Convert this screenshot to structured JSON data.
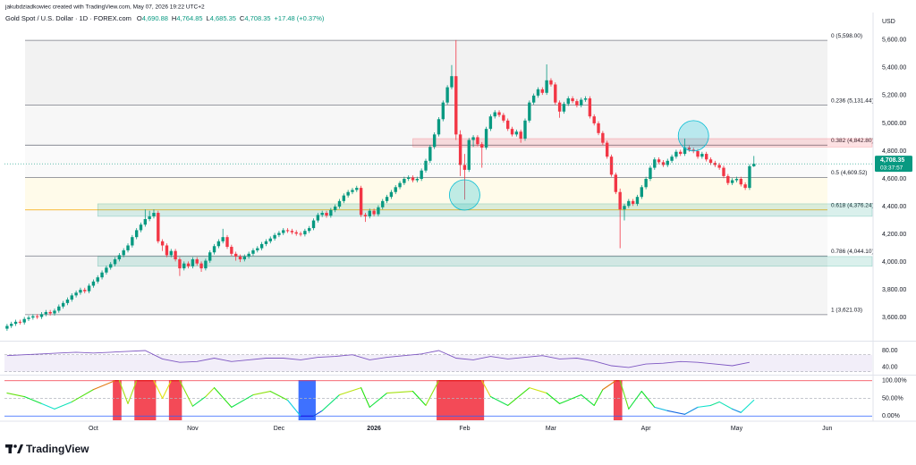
{
  "header": {
    "credit": "jakubdziadkowiec created with TradingView.com, May 07, 2026 19:22 UTC+2",
    "symbol": "Gold Spot / U.S. Dollar · 1D · FOREX.com",
    "ohlc": [
      {
        "key": "O",
        "text": "4,690.88"
      },
      {
        "key": "H",
        "text": "4,764.85"
      },
      {
        "key": "L",
        "text": "4,685.35"
      },
      {
        "key": "C",
        "text": "4,708.35"
      }
    ],
    "change": "+17.48 (+0.37%)"
  },
  "currency": "USD",
  "logo": "TradingView",
  "chart_data": [
    {
      "type": "candlestick",
      "xlim": [
        -0.6,
        200.4
      ],
      "xticks": [
        {
          "value": 20,
          "label": "Oct"
        },
        {
          "value": 43,
          "label": "Nov"
        },
        {
          "value": 63,
          "label": "Dec"
        },
        {
          "value": 85,
          "label": "2026"
        },
        {
          "value": 106,
          "label": "Feb"
        },
        {
          "value": 126,
          "label": "Mar"
        },
        {
          "value": 148,
          "label": "Apr"
        },
        {
          "value": 169,
          "label": "May"
        },
        {
          "value": 190,
          "label": "Jun"
        }
      ],
      "ylim": [
        3440,
        5760
      ],
      "yticks": [
        {
          "value": 3600,
          "label": "3,600.00"
        },
        {
          "value": 3800,
          "label": "3,800.00"
        },
        {
          "value": 4000,
          "label": "4,000.00"
        },
        {
          "value": 4200,
          "label": "4,200.00"
        },
        {
          "value": 4400,
          "label": "4,400.00"
        },
        {
          "value": 4600,
          "label": "4,600.00"
        },
        {
          "value": 4800,
          "label": "4,800.00"
        },
        {
          "value": 5000,
          "label": "5,000.00"
        },
        {
          "value": 5200,
          "label": "5,200.00"
        },
        {
          "value": 5400,
          "label": "5,400.00"
        },
        {
          "value": 5600,
          "label": "5,600.00"
        }
      ],
      "colors": {
        "up": "#089981",
        "down": "#f23645"
      },
      "open": [
        3520,
        3540,
        3555,
        3570,
        3565,
        3590,
        3600,
        3610,
        3605,
        3625,
        3640,
        3630,
        3650,
        3680,
        3705,
        3730,
        3760,
        3780,
        3800,
        3790,
        3830,
        3860,
        3890,
        3925,
        3960,
        3985,
        4020,
        4050,
        4085,
        4120,
        4180,
        4230,
        4270,
        4310,
        4330,
        4355,
        4150,
        4120,
        4050,
        4080,
        4020,
        3955,
        3990,
        3970,
        4020,
        3990,
        3955,
        4010,
        4070,
        4115,
        4150,
        4180,
        4110,
        4060,
        4040,
        4020,
        4040,
        4060,
        4085,
        4100,
        4130,
        4150,
        4170,
        4195,
        4210,
        4230,
        4225,
        4215,
        4205,
        4200,
        4225,
        4245,
        4300,
        4340,
        4355,
        4335,
        4375,
        4400,
        4440,
        4480,
        4505,
        4520,
        4535,
        4340,
        4330,
        4370,
        4345,
        4395,
        4440,
        4470,
        4505,
        4540,
        4570,
        4600,
        4610,
        4590,
        4600,
        4660,
        4730,
        4830,
        4920,
        5030,
        5150,
        5260,
        5340,
        4920,
        4700,
        4665,
        4880,
        4900,
        4850,
        4825,
        4960,
        5050,
        5080,
        5060,
        5020,
        4960,
        4920,
        4940,
        4890,
        5020,
        5150,
        5200,
        5245,
        5220,
        5310,
        5280,
        5150,
        5085,
        5140,
        5180,
        5160,
        5130,
        5170,
        5180,
        5050,
        5000,
        4930,
        4860,
        4760,
        4630,
        4505,
        4380,
        4405,
        4440,
        4420,
        4470,
        4540,
        4600,
        4680,
        4740,
        4720,
        4700,
        4730,
        4760,
        4795,
        4780,
        4825,
        4810,
        4800,
        4760,
        4780,
        4740,
        4715,
        4700,
        4680,
        4620,
        4570,
        4590,
        4600,
        4560,
        4535,
        4690.88
      ],
      "high": [
        3555,
        3570,
        3585,
        3585,
        3605,
        3615,
        3625,
        3625,
        3640,
        3655,
        3655,
        3665,
        3695,
        3720,
        3745,
        3775,
        3795,
        3815,
        3815,
        3845,
        3875,
        3905,
        3940,
        3975,
        4000,
        4035,
        4065,
        4100,
        4135,
        4195,
        4245,
        4285,
        4380,
        4370,
        4380,
        4370,
        4165,
        4135,
        4095,
        4095,
        4035,
        4005,
        4005,
        4035,
        4035,
        4005,
        4025,
        4085,
        4130,
        4165,
        4240,
        4195,
        4125,
        4075,
        4055,
        4055,
        4075,
        4100,
        4115,
        4145,
        4165,
        4185,
        4210,
        4225,
        4245,
        4245,
        4240,
        4230,
        4220,
        4240,
        4260,
        4315,
        4355,
        4370,
        4370,
        4390,
        4415,
        4455,
        4495,
        4520,
        4535,
        4550,
        4550,
        4355,
        4385,
        4385,
        4410,
        4455,
        4485,
        4520,
        4555,
        4585,
        4615,
        4625,
        4625,
        4615,
        4675,
        4745,
        4845,
        4935,
        5045,
        5165,
        5275,
        5420,
        5600,
        4950,
        4780,
        4895,
        4915,
        4915,
        4865,
        4975,
        5065,
        5095,
        5095,
        5075,
        5035,
        4975,
        4955,
        4955,
        5035,
        5165,
        5215,
        5260,
        5260,
        5425,
        5325,
        5295,
        5165,
        5155,
        5195,
        5195,
        5175,
        5185,
        5195,
        5195,
        5065,
        5015,
        4945,
        4875,
        4775,
        4645,
        4530,
        4420,
        4455,
        4455,
        4485,
        4555,
        4615,
        4695,
        4755,
        4755,
        4735,
        4745,
        4775,
        4810,
        4810,
        4890,
        4840,
        4825,
        4815,
        4795,
        4795,
        4755,
        4730,
        4715,
        4695,
        4635,
        4605,
        4615,
        4615,
        4575,
        4705,
        4764.85
      ],
      "low": [
        3505,
        3525,
        3540,
        3550,
        3550,
        3575,
        3585,
        3590,
        3590,
        3610,
        3615,
        3615,
        3635,
        3665,
        3690,
        3715,
        3745,
        3765,
        3775,
        3775,
        3815,
        3845,
        3875,
        3910,
        3945,
        3970,
        4005,
        4035,
        4070,
        4105,
        4165,
        4215,
        4255,
        4295,
        4315,
        4135,
        4080,
        4035,
        4035,
        4005,
        3900,
        3940,
        3955,
        3955,
        3975,
        3930,
        3940,
        3995,
        4055,
        4100,
        4135,
        4095,
        4045,
        4010,
        4000,
        4005,
        4025,
        4045,
        4070,
        4085,
        4115,
        4135,
        4155,
        4180,
        4195,
        4210,
        4200,
        4190,
        4185,
        4185,
        4210,
        4230,
        4285,
        4325,
        4320,
        4320,
        4360,
        4385,
        4425,
        4465,
        4490,
        4505,
        4325,
        4290,
        4315,
        4330,
        4330,
        4380,
        4425,
        4455,
        4490,
        4525,
        4555,
        4585,
        4575,
        4575,
        4585,
        4645,
        4715,
        4815,
        4905,
        5015,
        5135,
        5245,
        4880,
        4620,
        4450,
        4650,
        4830,
        4835,
        4680,
        4810,
        4945,
        5035,
        5045,
        5005,
        4945,
        4905,
        4905,
        4860,
        4875,
        5005,
        5135,
        5185,
        5205,
        5205,
        5265,
        5135,
        5040,
        5070,
        5125,
        5145,
        5115,
        5115,
        5155,
        5035,
        4985,
        4915,
        4845,
        4745,
        4615,
        4490,
        4100,
        4300,
        4390,
        4405,
        4405,
        4455,
        4525,
        4585,
        4665,
        4705,
        4685,
        4685,
        4715,
        4745,
        4765,
        4765,
        4795,
        4785,
        4745,
        4745,
        4725,
        4700,
        4685,
        4665,
        4605,
        4555,
        4555,
        4575,
        4545,
        4520,
        4520,
        4685.35
      ],
      "close": [
        3540,
        3555,
        3570,
        3565,
        3590,
        3600,
        3610,
        3605,
        3625,
        3640,
        3630,
        3650,
        3680,
        3705,
        3730,
        3760,
        3780,
        3800,
        3790,
        3830,
        3860,
        3890,
        3925,
        3960,
        3985,
        4020,
        4050,
        4085,
        4120,
        4180,
        4230,
        4270,
        4310,
        4330,
        4355,
        4150,
        4120,
        4050,
        4080,
        4020,
        3955,
        3990,
        3970,
        4020,
        3990,
        3955,
        4010,
        4070,
        4115,
        4150,
        4180,
        4110,
        4060,
        4040,
        4020,
        4040,
        4060,
        4085,
        4100,
        4130,
        4150,
        4170,
        4195,
        4210,
        4230,
        4225,
        4215,
        4205,
        4200,
        4225,
        4245,
        4300,
        4340,
        4355,
        4335,
        4375,
        4400,
        4440,
        4480,
        4505,
        4520,
        4535,
        4340,
        4330,
        4370,
        4345,
        4395,
        4440,
        4470,
        4505,
        4540,
        4570,
        4600,
        4610,
        4590,
        4600,
        4660,
        4730,
        4830,
        4920,
        5030,
        5150,
        5260,
        5340,
        4920,
        4700,
        4665,
        4880,
        4900,
        4850,
        4825,
        4960,
        5050,
        5080,
        5060,
        5020,
        4960,
        4920,
        4940,
        4890,
        5020,
        5150,
        5200,
        5245,
        5220,
        5310,
        5280,
        5150,
        5085,
        5140,
        5180,
        5160,
        5130,
        5170,
        5180,
        5050,
        5000,
        4930,
        4860,
        4760,
        4630,
        4505,
        4380,
        4405,
        4440,
        4420,
        4470,
        4540,
        4600,
        4680,
        4740,
        4720,
        4700,
        4730,
        4760,
        4795,
        4780,
        4825,
        4810,
        4800,
        4760,
        4780,
        4740,
        4715,
        4700,
        4680,
        4620,
        4570,
        4590,
        4600,
        4560,
        4535,
        4690.88,
        4708.35
      ],
      "fib_levels": [
        {
          "value": 5598,
          "label": "0 (5,598.00)",
          "color": "#787b86",
          "fill": "#f2f2f2"
        },
        {
          "value": 5131.44,
          "label": "0.236 (5,131.44)",
          "color": "#787b86",
          "fill": "#f7f7f7"
        },
        {
          "value": 4842.8,
          "label": "0.382 (4,842.80)",
          "color": "#787b86",
          "fill": "#fafafa"
        },
        {
          "value": 4609.52,
          "label": "0.5 (4,609.52)",
          "color": "#787b86",
          "fill": "#fffbea"
        },
        {
          "value": 4376.24,
          "label": "0.618 (4,376.24)",
          "color": "#f7a600",
          "fill": "#f9f9f9"
        },
        {
          "value": 4044.1,
          "label": "0.786 (4,044.10)",
          "color": "#787b86",
          "fill": "#f5f5f5"
        },
        {
          "value": 3621.03,
          "label": "1 (3,621.03)",
          "color": "#787b86"
        }
      ],
      "zones": [
        {
          "x0": 94,
          "top": 4890,
          "bottom": 4830,
          "color": "#f23645"
        },
        {
          "x0": 21,
          "top": 4420,
          "bottom": 4330,
          "color": "#089981"
        },
        {
          "x0": 21,
          "top": 4040,
          "bottom": 3970,
          "color": "#089981"
        }
      ],
      "circles": [
        {
          "x": 106,
          "y": 4484,
          "color": "#00bcd4"
        },
        {
          "x": 159,
          "y": 4910,
          "color": "#00bcd4"
        }
      ],
      "last_price": {
        "value": 4708.35,
        "label": "4,708.35",
        "countdown": "03:37:57",
        "color": "#089981"
      }
    },
    {
      "type": "line",
      "color": "#7e57c2",
      "ylim": [
        25,
        99
      ],
      "yticks": [
        {
          "value": 80,
          "label": "80.00"
        },
        {
          "value": 40,
          "label": "40.00"
        }
      ],
      "band": [
        30,
        70
      ],
      "x": [
        0,
        4,
        8,
        12,
        16,
        20,
        24,
        28,
        32,
        36,
        40,
        44,
        48,
        52,
        56,
        60,
        64,
        68,
        72,
        76,
        80,
        84,
        88,
        92,
        96,
        100,
        104,
        108,
        112,
        116,
        120,
        124,
        128,
        132,
        136,
        140,
        144,
        148,
        152,
        156,
        160,
        164,
        168,
        172
      ],
      "values": [
        68,
        70,
        72,
        74,
        76,
        74,
        76,
        78,
        80,
        60,
        52,
        54,
        62,
        54,
        58,
        62,
        62,
        58,
        64,
        66,
        70,
        58,
        64,
        68,
        72,
        80,
        62,
        58,
        66,
        60,
        64,
        68,
        60,
        62,
        55,
        44,
        40,
        48,
        50,
        54,
        52,
        48,
        44,
        52
      ]
    },
    {
      "type": "oscillator",
      "ylim": [
        -12,
        112
      ],
      "yticks": [
        {
          "value": 100,
          "label": "100.00%"
        },
        {
          "value": 50,
          "label": "50.00%"
        },
        {
          "value": 0,
          "label": "0.00%"
        }
      ],
      "level_colors": [
        "#f23645",
        "#b2b5be",
        "#2962ff"
      ],
      "x": [
        0,
        4,
        8,
        11,
        15,
        20,
        25,
        26,
        28,
        30,
        34,
        36,
        38,
        40,
        43,
        46,
        48,
        52,
        57,
        61,
        65,
        68,
        71,
        73,
        77,
        82,
        84,
        88,
        94,
        97,
        100,
        110,
        112,
        116,
        121,
        125,
        128,
        133,
        136,
        138,
        141,
        142,
        144,
        147,
        150,
        153,
        157,
        160,
        163,
        165,
        168,
        170,
        173
      ],
      "values": [
        65,
        55,
        35,
        20,
        40,
        75,
        100,
        100,
        35,
        100,
        100,
        50,
        100,
        100,
        28,
        55,
        80,
        25,
        60,
        70,
        45,
        0,
        0,
        15,
        60,
        80,
        25,
        65,
        70,
        30,
        100,
        100,
        55,
        30,
        80,
        65,
        35,
        60,
        30,
        75,
        100,
        100,
        20,
        70,
        25,
        15,
        5,
        25,
        30,
        40,
        20,
        10,
        45
      ]
    }
  ]
}
